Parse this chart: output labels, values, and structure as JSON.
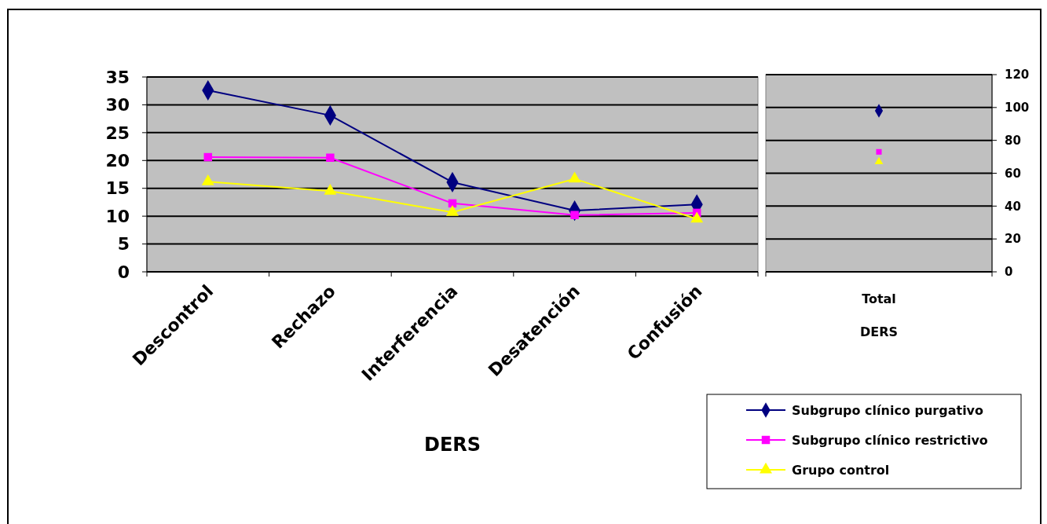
{
  "chart_data": [
    {
      "type": "line",
      "xlabel": "DERS",
      "categories": [
        "Descontrol",
        "Rechazo",
        "Interferencia",
        "Desatención",
        "Confusión"
      ],
      "ylim": [
        0,
        35
      ],
      "yticks": [
        0,
        5,
        10,
        15,
        20,
        25,
        30,
        35
      ],
      "grid": "y",
      "legend": "bottom right",
      "line_style": "solid",
      "series": [
        {
          "name": "Subgrupo clínico purgativo",
          "color": "#000080",
          "marker": "diamond",
          "values": [
            32.6,
            28.1,
            16.1,
            11.0,
            12.1
          ]
        },
        {
          "name": "Subgrupo clínico restrictivo",
          "color": "#ff00ff",
          "marker": "square",
          "values": [
            20.6,
            20.5,
            12.3,
            10.2,
            10.6
          ]
        },
        {
          "name": "Grupo control",
          "color": "#ffff00",
          "marker": "triangle",
          "values": [
            16.2,
            14.5,
            10.7,
            16.7,
            9.5
          ]
        }
      ]
    },
    {
      "type": "scatter",
      "xlabel": "DERS",
      "categories": [
        "Total"
      ],
      "y2lim": [
        0,
        120
      ],
      "y2ticks": [
        0,
        20,
        40,
        60,
        80,
        100,
        120
      ],
      "grid": "y",
      "series": [
        {
          "color": "#000080",
          "marker": "diamond",
          "axis": "y2",
          "values": [
            98
          ]
        },
        {
          "color": "#ff00ff",
          "marker": "square",
          "axis": "y2",
          "values": [
            73
          ]
        },
        {
          "color": "#ffff00",
          "marker": "triangle",
          "axis": "y2",
          "values": [
            67
          ]
        }
      ]
    }
  ]
}
